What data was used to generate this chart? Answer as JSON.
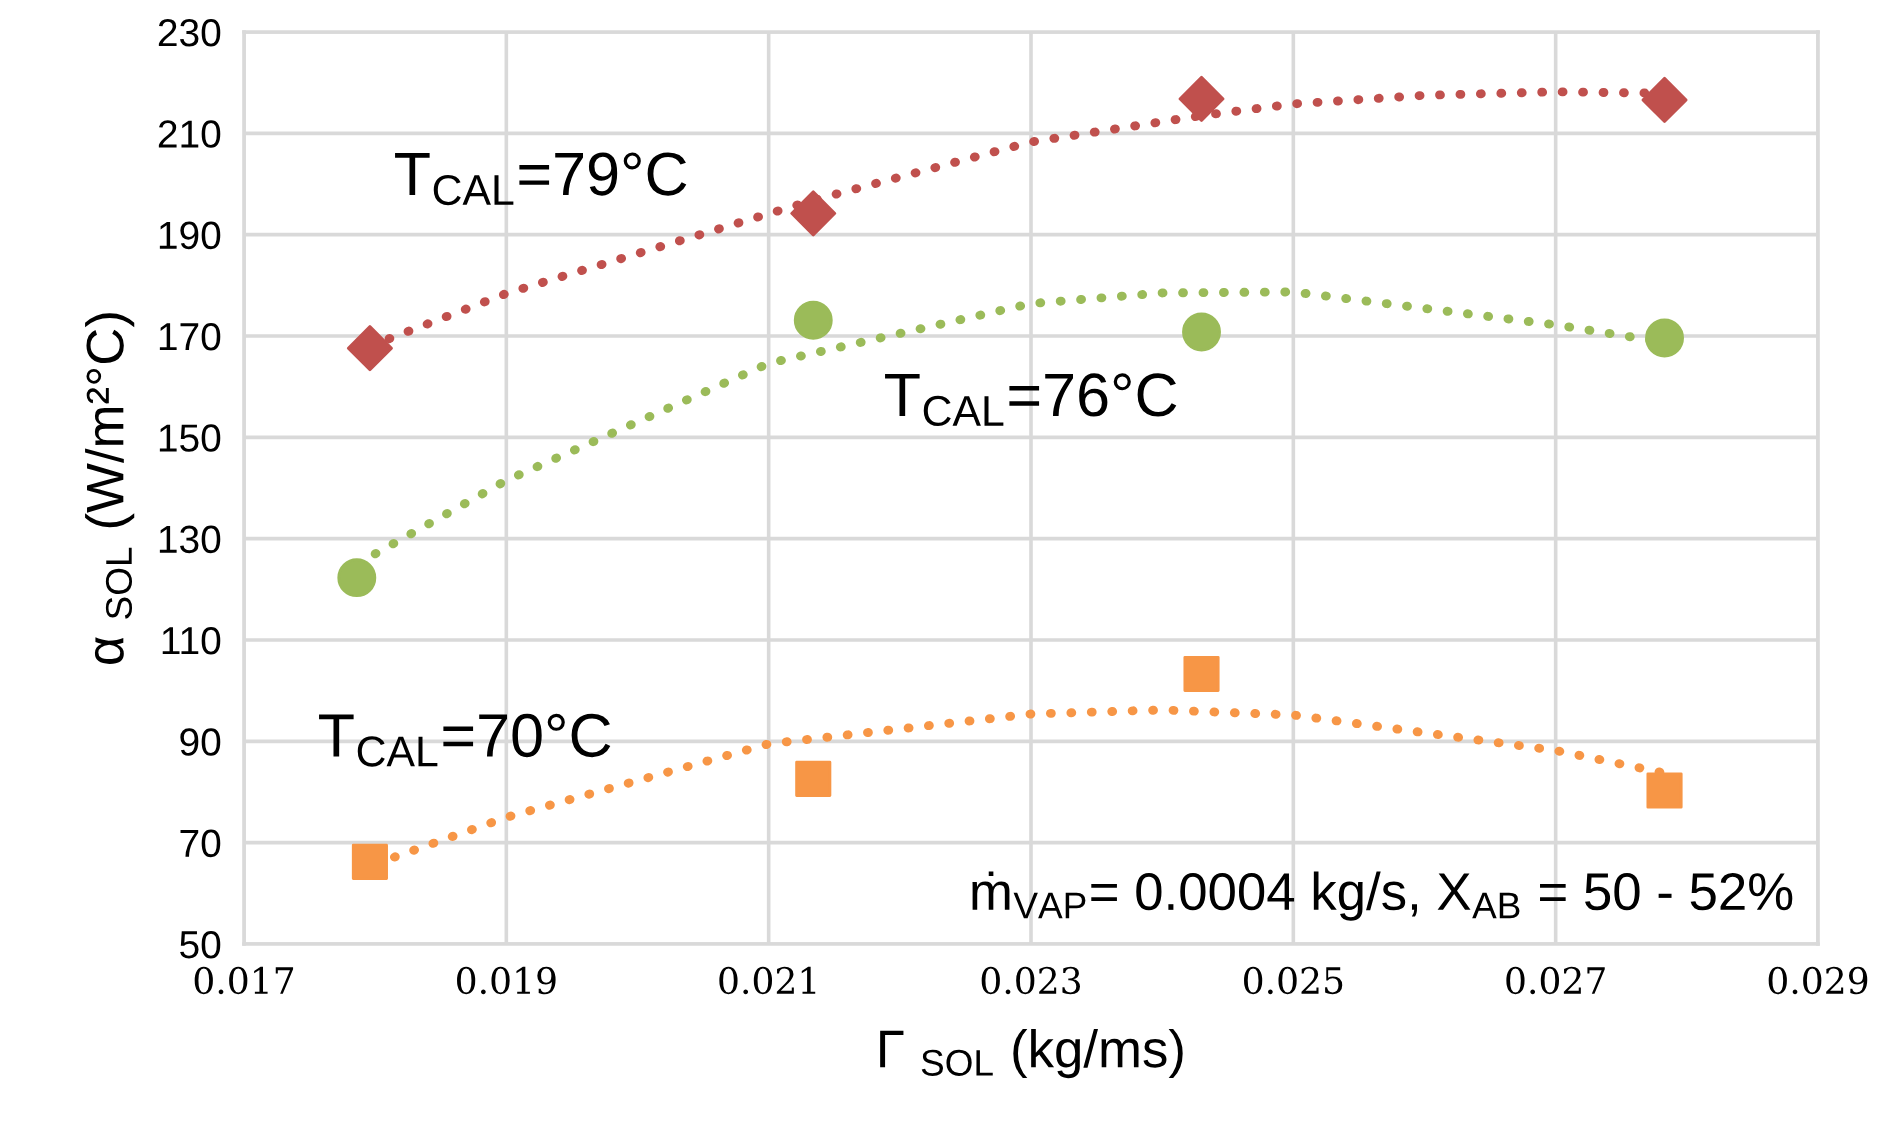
{
  "chart_data": {
    "type": "scatter",
    "xlabel": "Γ $_{SOL}$ (kg/ms)",
    "ylabel": "α $_{SOL}$ (W/m²°C)",
    "xlim": [
      0.017,
      0.029
    ],
    "xticks": [
      0.017,
      0.019,
      0.021,
      0.023,
      0.025,
      0.027,
      0.029
    ],
    "ylim": [
      50,
      230
    ],
    "yticks": [
      50,
      70,
      90,
      110,
      130,
      150,
      170,
      190,
      210,
      230
    ],
    "grid": true,
    "legend": false,
    "series": [
      {
        "name": "T$_{CAL}$=79°C",
        "marker": "diamond",
        "color": "#c0504d",
        "x": [
          0.01796,
          0.02134,
          0.0243,
          0.02783
        ],
        "values": [
          167.6,
          194.2,
          216.8,
          216.6
        ]
      },
      {
        "name": "T$_{CAL}$=76°C",
        "marker": "circle",
        "color": "#9bbb59",
        "x": [
          0.01786,
          0.02134,
          0.0243,
          0.02783
        ],
        "values": [
          122.3,
          173.1,
          170.8,
          169.6
        ]
      },
      {
        "name": "T$_{CAL}$=70°C",
        "marker": "square",
        "color": "#f79646",
        "x": [
          0.01796,
          0.02134,
          0.0243,
          0.02783
        ],
        "values": [
          66.2,
          82.6,
          103.3,
          80.3
        ]
      },
      {
        "type": "line",
        "marker": "none",
        "line_style": "dotted",
        "color": "#c0504d",
        "x": [
          0.01796,
          0.019,
          0.02134,
          0.023,
          0.0243,
          0.025,
          0.026,
          0.027,
          0.02783
        ],
        "values": [
          168,
          178.4,
          196.8,
          208.3,
          213.5,
          215.8,
          217.5,
          218.2,
          217.9
        ]
      },
      {
        "type": "line",
        "marker": "none",
        "line_style": "dotted",
        "color": "#9bbb59",
        "x": [
          0.018,
          0.019,
          0.021,
          0.023,
          0.024,
          0.025,
          0.027,
          0.0278
        ],
        "values": [
          127,
          141.5,
          164.6,
          176.4,
          178.5,
          178.7,
          172.2,
          168.9
        ]
      },
      {
        "type": "line",
        "marker": "none",
        "line_style": "dotted",
        "color": "#f79646",
        "x": [
          0.018,
          0.019,
          0.021,
          0.023,
          0.024,
          0.025,
          0.027,
          0.0278
        ],
        "values": [
          65.8,
          75,
          89.5,
          95.4,
          96.2,
          95.2,
          88.2,
          83.9
        ]
      }
    ],
    "annotations": [
      "ṁ$_{VAP}$= 0.0004 kg/s, X$_{AB}$ = 50 - 52%"
    ]
  }
}
